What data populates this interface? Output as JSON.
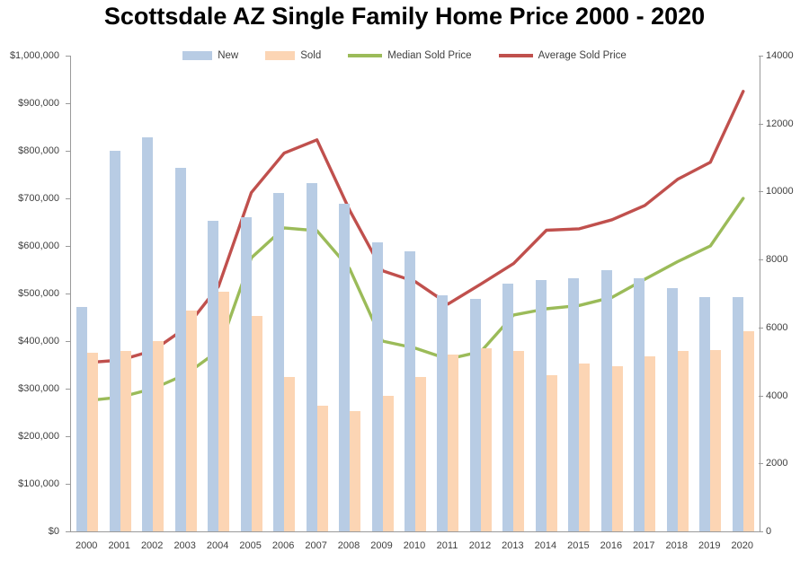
{
  "chart_data": {
    "type": "bar",
    "subtype": "combo-bar-line",
    "title": "Scottsdale AZ Single Family Home Price 2000 - 2020",
    "legend_position": "top",
    "gridlines": false,
    "categories": [
      "2000",
      "2001",
      "2002",
      "2003",
      "2004",
      "2005",
      "2006",
      "2007",
      "2008",
      "2009",
      "2010",
      "2011",
      "2012",
      "2013",
      "2014",
      "2015",
      "2016",
      "2017",
      "2018",
      "2019",
      "2020"
    ],
    "series": [
      {
        "name": "New",
        "type": "bar",
        "axis": "right",
        "color": "#b8cce4",
        "values": [
          6600,
          11200,
          11600,
          10700,
          9150,
          9250,
          9950,
          10250,
          9650,
          8500,
          8250,
          6950,
          6850,
          7300,
          7400,
          7450,
          7700,
          7450,
          7150,
          6900,
          6900
        ]
      },
      {
        "name": "Sold",
        "type": "bar",
        "axis": "right",
        "color": "#fcd5b4",
        "values": [
          5250,
          5300,
          5600,
          6500,
          7050,
          6350,
          4550,
          3700,
          3550,
          4000,
          4550,
          5200,
          5400,
          5300,
          4600,
          4950,
          4850,
          5150,
          5300,
          5350,
          5900
        ]
      },
      {
        "name": "Median Sold Price",
        "type": "line",
        "axis": "left",
        "color": "#9bbb59",
        "values": [
          275000,
          282000,
          300000,
          330000,
          380000,
          575000,
          638000,
          632000,
          552000,
          400000,
          385000,
          362000,
          378000,
          455000,
          468000,
          475000,
          492000,
          530000,
          567000,
          600000,
          700000
        ]
      },
      {
        "name": "Average Sold Price",
        "type": "line",
        "axis": "left",
        "color": "#c0504d",
        "values": [
          355000,
          360000,
          380000,
          428000,
          515000,
          712000,
          795000,
          823000,
          675000,
          548000,
          525000,
          478000,
          520000,
          563000,
          633000,
          636000,
          655000,
          685000,
          740000,
          776000,
          925000
        ]
      }
    ],
    "left_axis": {
      "min": 0,
      "max": 1000000,
      "step": 100000,
      "tick_labels": [
        "$0",
        "$100,000",
        "$200,000",
        "$300,000",
        "$400,000",
        "$500,000",
        "$600,000",
        "$700,000",
        "$800,000",
        "$900,000",
        "$1,000,000"
      ]
    },
    "right_axis": {
      "min": 0,
      "max": 14000,
      "step": 2000,
      "tick_labels": [
        "0",
        "2000",
        "4000",
        "6000",
        "8000",
        "10000",
        "12000",
        "14000"
      ]
    }
  }
}
